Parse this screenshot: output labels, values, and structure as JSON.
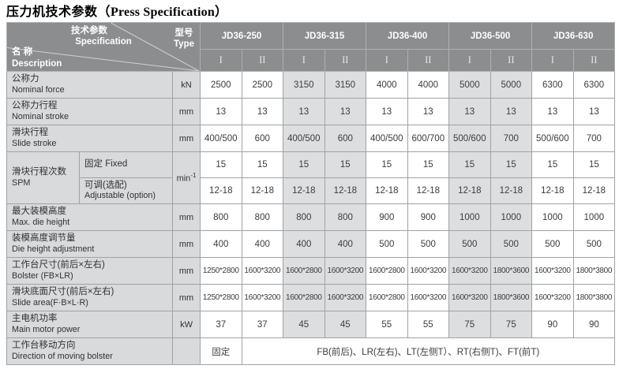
{
  "title": {
    "zh": "压力机技术参数",
    "open": "（",
    "en": "Press Specification",
    "close": "）"
  },
  "colors": {
    "header_bg": "#8b8d8f",
    "label_bg": "#d8dadb",
    "shade_bg": "#dcdee0",
    "border": "#9fa3a6",
    "header_text": "#ffffff",
    "body_text": "#3a3c3e"
  },
  "table": {
    "corner": {
      "param_zh": "技术参数",
      "param_en": "Specification",
      "type_zh": "型号",
      "type_en": "Type",
      "name_zh": "名 称",
      "name_en": "Description"
    },
    "models": [
      "JD36-250",
      "JD36-315",
      "JD36-400",
      "JD36-500",
      "JD36-630"
    ],
    "sub_cols": [
      "I",
      "II"
    ],
    "shaded_cols": [
      2,
      3,
      6,
      7
    ],
    "rows": [
      {
        "zh": "公称力",
        "en": "Nominal force",
        "unit": "kN",
        "values": [
          "2500",
          "2500",
          "3150",
          "3150",
          "4000",
          "4000",
          "5000",
          "5000",
          "6300",
          "6300"
        ]
      },
      {
        "zh": "公称力行程",
        "en": "Nominal stroke",
        "unit": "mm",
        "values": [
          "13",
          "13",
          "13",
          "13",
          "13",
          "13",
          "13",
          "13",
          "13",
          "13"
        ]
      },
      {
        "zh": "滑块行程",
        "en": "Slide stroke",
        "unit": "mm",
        "values": [
          "400/500",
          "600",
          "400/500",
          "600",
          "400/500",
          "600/700",
          "500/600",
          "700",
          "500/600",
          "700"
        ]
      },
      {
        "group_zh": "滑块行程次数",
        "group_en": "SPM",
        "unit": "min",
        "unit_sup": "-1",
        "sub": [
          {
            "zh": "固定  Fixed",
            "en": "",
            "values": [
              "15",
              "15",
              "15",
              "15",
              "15",
              "15",
              "15",
              "15",
              "15",
              "15"
            ]
          },
          {
            "zh": "可调(选配)",
            "en": "Adjustable (option)",
            "values": [
              "12-18",
              "12-18",
              "12-18",
              "12-18",
              "12-18",
              "12-18",
              "12-18",
              "12-18",
              "12-18",
              "12-18"
            ]
          }
        ]
      },
      {
        "zh": "最大装模高度",
        "en": "Max. die height",
        "unit": "mm",
        "values": [
          "800",
          "800",
          "800",
          "800",
          "900",
          "900",
          "1000",
          "1000",
          "1000",
          "1000"
        ]
      },
      {
        "zh": "装模高度调节量",
        "en": "Die height adjustment",
        "unit": "mm",
        "values": [
          "400",
          "400",
          "400",
          "400",
          "500",
          "500",
          "500",
          "500",
          "500",
          "500"
        ]
      },
      {
        "zh": "工作台尺寸(前后×左右)",
        "en": "Bolster (FB×LR)",
        "unit": "mm",
        "values": [
          "1250*2800",
          "1600*3200",
          "1600*2800",
          "1600*3200",
          "1600*2800",
          "1600*3200",
          "1600*3200",
          "1800*3600",
          "1600*3200",
          "1800*3800"
        ]
      },
      {
        "zh": "滑块底面尺寸(前后×左右)",
        "en": "Slide area(F·B×L·R)",
        "unit": "mm",
        "values": [
          "1250*2800",
          "1600*3200",
          "1600*2800",
          "1600*3200",
          "1600*2800",
          "1600*3200",
          "1600*3200",
          "1800*3600",
          "1600*3200",
          "1800*3800"
        ]
      },
      {
        "zh": "主电机功率",
        "en": "Main motor power",
        "unit": "kW",
        "values": [
          "37",
          "37",
          "45",
          "45",
          "55",
          "55",
          "75",
          "75",
          "90",
          "90"
        ]
      },
      {
        "zh": "工作台移动方向",
        "en": "Direction of moving bolster",
        "unit": "",
        "first": "固定",
        "rest": "FB(前后)、LR(左右)、LT(左侧T）、RT(右侧T)、FT(前T)"
      }
    ]
  }
}
